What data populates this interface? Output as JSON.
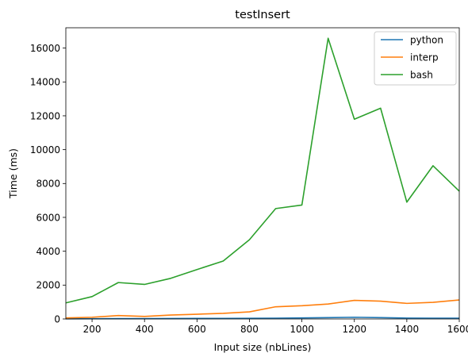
{
  "chart_data": {
    "type": "line",
    "title": "testInsert",
    "xlabel": "Input size (nbLines)",
    "ylabel": "Time (ms)",
    "xlim": [
      100,
      1600
    ],
    "ylim": [
      0,
      17200
    ],
    "xticks": [
      200,
      400,
      600,
      800,
      1000,
      1200,
      1400,
      1600
    ],
    "yticks": [
      0,
      2000,
      4000,
      6000,
      8000,
      10000,
      12000,
      14000,
      16000
    ],
    "grid": false,
    "legend_position": "top-right",
    "x": [
      100,
      200,
      300,
      400,
      500,
      600,
      700,
      800,
      900,
      1000,
      1100,
      1200,
      1300,
      1400,
      1500,
      1600
    ],
    "series": [
      {
        "name": "python",
        "color": "#1f77b4",
        "values": [
          10,
          15,
          20,
          20,
          25,
          30,
          35,
          40,
          45,
          60,
          80,
          100,
          80,
          50,
          45,
          45
        ]
      },
      {
        "name": "interp",
        "color": "#ff7f0e",
        "values": [
          60,
          100,
          200,
          150,
          230,
          280,
          330,
          420,
          720,
          780,
          880,
          1100,
          1050,
          920,
          980,
          1120
        ]
      },
      {
        "name": "bash",
        "color": "#2ca02c",
        "values": [
          950,
          1320,
          2150,
          2040,
          2400,
          2920,
          3420,
          4680,
          6520,
          6730,
          16580,
          11800,
          12450,
          6900,
          9050,
          7550
        ]
      }
    ]
  }
}
